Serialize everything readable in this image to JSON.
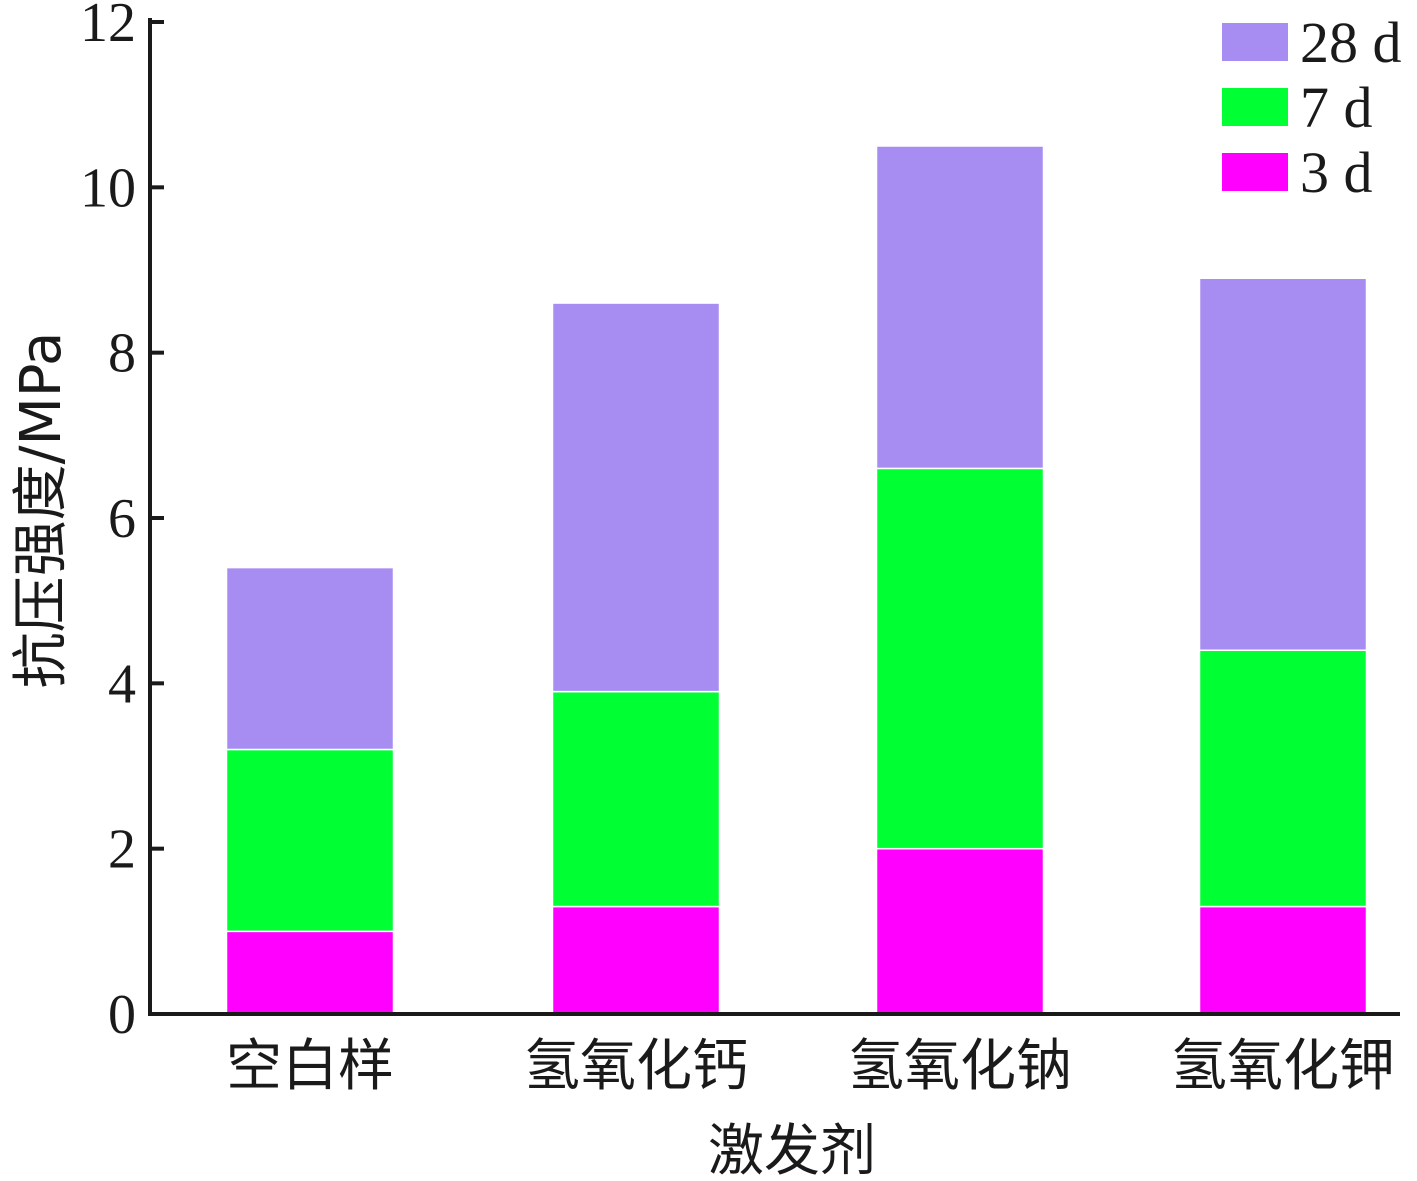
{
  "chart_data": {
    "type": "bar",
    "stacked": true,
    "categories": [
      "空白样",
      "氢氧化钙",
      "氢氧化钠",
      "氢氧化钾"
    ],
    "series": [
      {
        "name": "3 d",
        "color": "#ff00ff",
        "values": [
          1.0,
          1.3,
          2.0,
          1.3
        ]
      },
      {
        "name": "7 d",
        "color": "#00ff33",
        "values": [
          2.2,
          2.6,
          4.6,
          3.1
        ]
      },
      {
        "name": "28 d",
        "color": "#a78cf2",
        "values": [
          2.2,
          4.7,
          3.9,
          4.5
        ]
      }
    ],
    "legend_order": [
      "28 d",
      "7 d",
      "3 d"
    ],
    "legend_position": "top-right",
    "xlabel": "激发剂",
    "ylabel": "抗压强度/MPa",
    "ylim": [
      0,
      12
    ],
    "yticks": [
      0,
      2,
      4,
      6,
      8,
      10,
      12
    ],
    "grid": false
  }
}
